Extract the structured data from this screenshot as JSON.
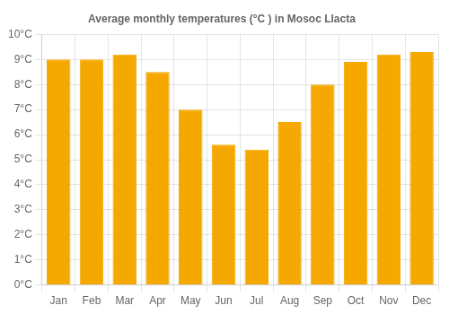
{
  "chart_data": {
    "type": "bar",
    "title": "Average monthly temperatures (°C ) in Mosoc Llacta",
    "categories": [
      "Jan",
      "Feb",
      "Mar",
      "Apr",
      "May",
      "Jun",
      "Jul",
      "Aug",
      "Sep",
      "Oct",
      "Nov",
      "Dec"
    ],
    "values": [
      9.0,
      9.0,
      9.2,
      8.5,
      7.0,
      5.6,
      5.4,
      6.5,
      8.0,
      8.9,
      9.2,
      9.3
    ],
    "color": "#F5A800",
    "ylim": [
      0,
      10
    ],
    "yticks": [
      {
        "value": 0,
        "label": "0°C"
      },
      {
        "value": 1,
        "label": "1°C"
      },
      {
        "value": 2,
        "label": "2°C"
      },
      {
        "value": 3,
        "label": "3°C"
      },
      {
        "value": 4,
        "label": "4°C"
      },
      {
        "value": 5,
        "label": "5°C"
      },
      {
        "value": 6,
        "label": "6°C"
      },
      {
        "value": 7,
        "label": "7°C"
      },
      {
        "value": 8,
        "label": "8°C"
      },
      {
        "value": 9,
        "label": "9°C"
      },
      {
        "value": 10,
        "label": "10°C"
      }
    ],
    "grid": true
  }
}
